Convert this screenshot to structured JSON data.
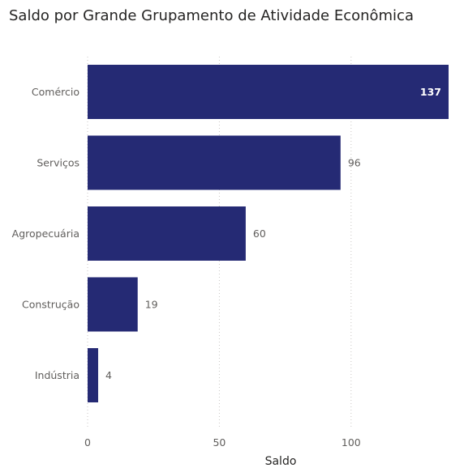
{
  "chart_data": {
    "type": "bar",
    "orientation": "horizontal",
    "title": "Saldo por Grande Grupamento de Atividade Econômica",
    "xlabel": "Saldo",
    "ylabel": "",
    "categories": [
      "Comércio",
      "Serviços",
      "Agropecuária",
      "Construção",
      "Indústria"
    ],
    "values": [
      137,
      96,
      60,
      19,
      4
    ],
    "xlim": [
      0,
      137
    ],
    "xticks": [
      0,
      50,
      100
    ],
    "grid": true,
    "bar_color": "#252a74"
  }
}
